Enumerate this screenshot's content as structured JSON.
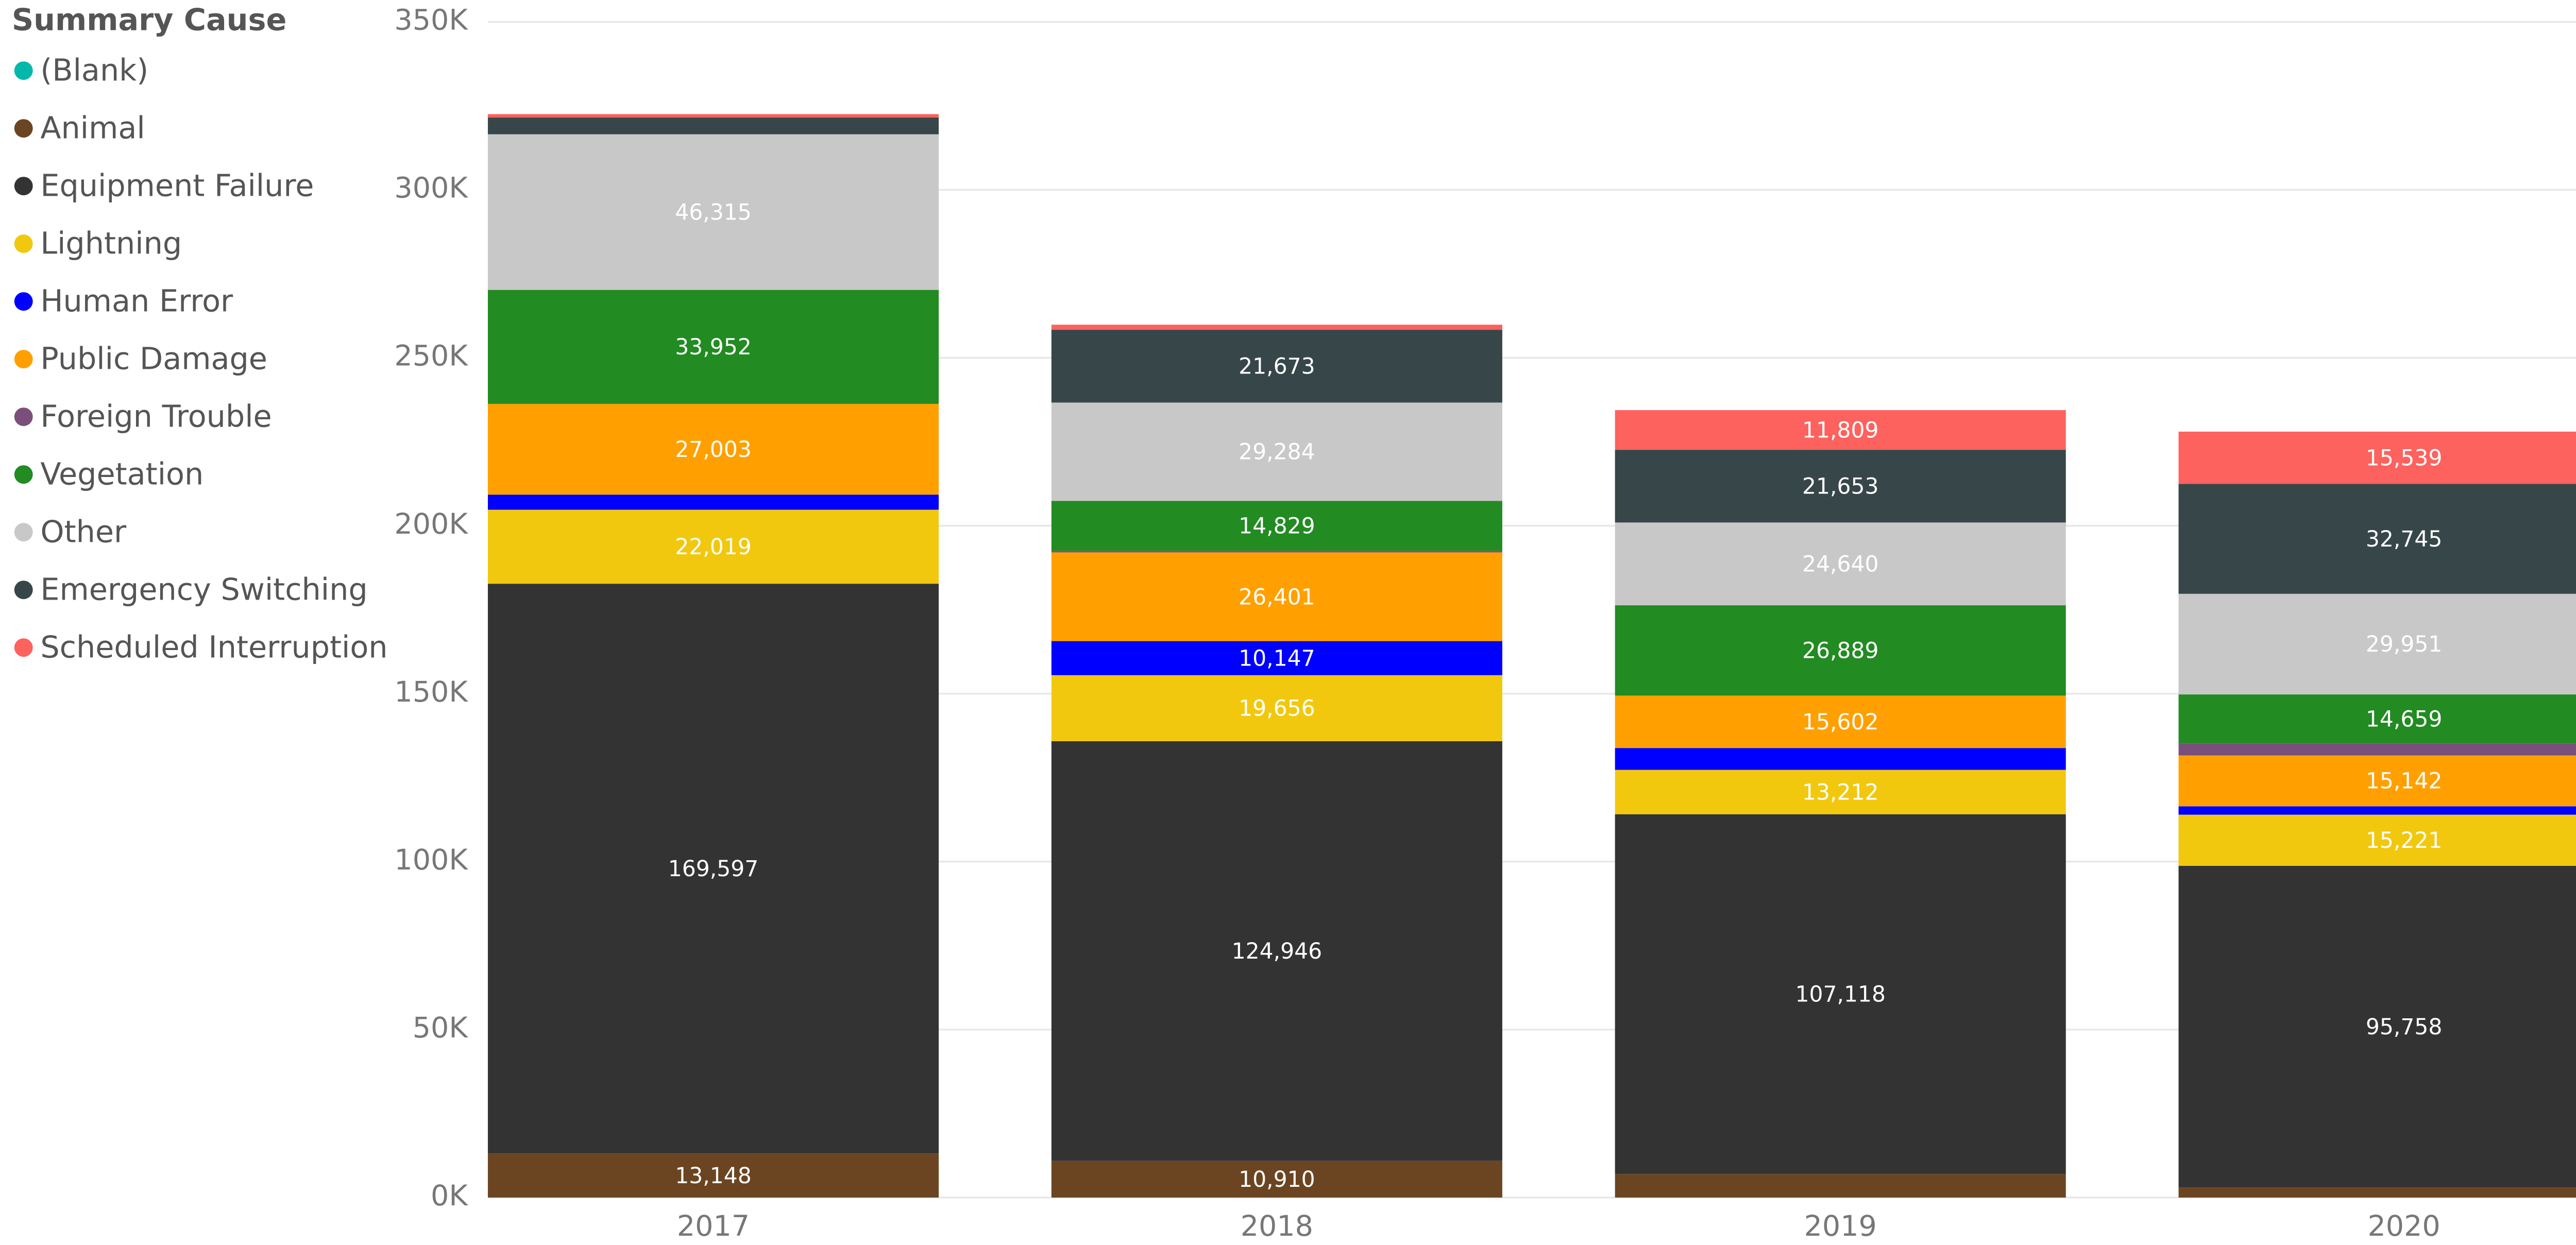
{
  "chart_data": {
    "type": "stacked_bar",
    "legend_title": "Summary Cause",
    "categories": [
      "2017",
      "2018",
      "2019",
      "2020"
    ],
    "ylim": [
      0,
      350000
    ],
    "yticks": [
      {
        "value": 0,
        "label": "0K"
      },
      {
        "value": 50000,
        "label": "50K"
      },
      {
        "value": 100000,
        "label": "100K"
      },
      {
        "value": 150000,
        "label": "150K"
      },
      {
        "value": 200000,
        "label": "200K"
      },
      {
        "value": 250000,
        "label": "250K"
      },
      {
        "value": 300000,
        "label": "300K"
      },
      {
        "value": 350000,
        "label": "350K"
      }
    ],
    "grid": true,
    "legend": "left",
    "series": [
      {
        "name": "(Blank)",
        "color": "#01B8AA",
        "values": [
          0,
          0,
          0,
          0
        ],
        "value_labels": [
          null,
          null,
          null,
          null
        ]
      },
      {
        "name": "Animal",
        "color": "#6B4521",
        "values": [
          13148,
          10910,
          7000,
          3000
        ],
        "value_labels": [
          "13,148",
          "10,910",
          null,
          null
        ]
      },
      {
        "name": "Equipment Failure",
        "color": "#333333",
        "values": [
          169597,
          124946,
          107118,
          95758
        ],
        "value_labels": [
          "169,597",
          "124,946",
          "107,118",
          "95,758"
        ]
      },
      {
        "name": "Lightning",
        "color": "#F2C80F",
        "values": [
          22019,
          19656,
          13212,
          15221
        ],
        "value_labels": [
          "22,019",
          "19,656",
          "13,212",
          "15,221"
        ]
      },
      {
        "name": "Human Error",
        "color": "#0000FF",
        "values": [
          4500,
          10147,
          6500,
          2500
        ],
        "value_labels": [
          null,
          "10,147",
          null,
          null
        ]
      },
      {
        "name": "Public Damage",
        "color": "#FFA000",
        "values": [
          27003,
          26401,
          15602,
          15142
        ],
        "value_labels": [
          "27,003",
          "26,401",
          "15,602",
          "15,142"
        ]
      },
      {
        "name": "Foreign Trouble",
        "color": "#7B4F7B",
        "values": [
          0,
          500,
          0,
          3500
        ],
        "value_labels": [
          null,
          null,
          null,
          null
        ]
      },
      {
        "name": "Vegetation",
        "color": "#228B22",
        "values": [
          33952,
          14829,
          26889,
          14659
        ],
        "value_labels": [
          "33,952",
          "14,829",
          "26,889",
          "14,659"
        ]
      },
      {
        "name": "Other",
        "color": "#C8C8C8",
        "values": [
          46315,
          29284,
          24640,
          29951
        ],
        "value_labels": [
          "46,315",
          "29,284",
          "24,640",
          "29,951"
        ]
      },
      {
        "name": "Emergency Switching",
        "color": "#374649",
        "values": [
          5000,
          21673,
          21653,
          32745
        ],
        "value_labels": [
          null,
          "21,673",
          "21,653",
          "32,745"
        ]
      },
      {
        "name": "Scheduled Interruption",
        "color": "#FD625E",
        "values": [
          1000,
          1500,
          11809,
          15539
        ],
        "value_labels": [
          null,
          null,
          "11,809",
          "15,539"
        ]
      }
    ]
  }
}
